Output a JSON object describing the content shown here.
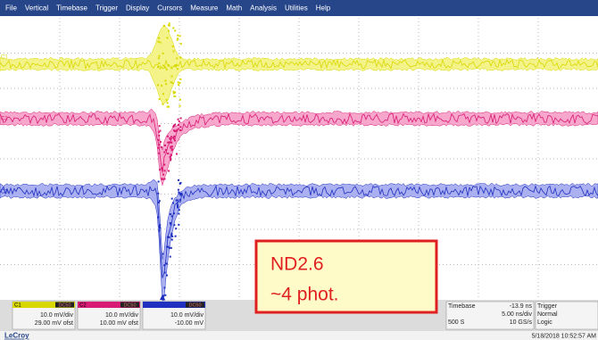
{
  "menu": [
    "File",
    "Vertical",
    "Timebase",
    "Trigger",
    "Display",
    "Cursors",
    "Measure",
    "Math",
    "Analysis",
    "Utilities",
    "Help"
  ],
  "channels": [
    "C1",
    "C2",
    "C3"
  ],
  "channel_boxes": [
    {
      "name": "C1",
      "coupling": "DC50",
      "scale": "10.0 mV/div",
      "offset": "29.00 mV ofst"
    },
    {
      "name": "C2",
      "coupling": "DC50",
      "scale": "10.0 mV/div",
      "offset": "10.00 mV ofst"
    },
    {
      "coupling": "DC50",
      "scale": "10.0 mV/div",
      "offset": "-10.00 mV"
    }
  ],
  "timebase": {
    "title": "Timebase",
    "delay": "-13.9 ns",
    "scale": "5.00 ns/div",
    "samples": "500 S",
    "rate": "10 GS/s"
  },
  "trigger": {
    "title": "Trigger",
    "mode": "Normal",
    "type": "Logic"
  },
  "brand": "LeCroy",
  "timestamp": "5/18/2018 10:52:57 AM",
  "annotation": {
    "lines": [
      "ND2.6",
      "~4 phot."
    ]
  }
}
